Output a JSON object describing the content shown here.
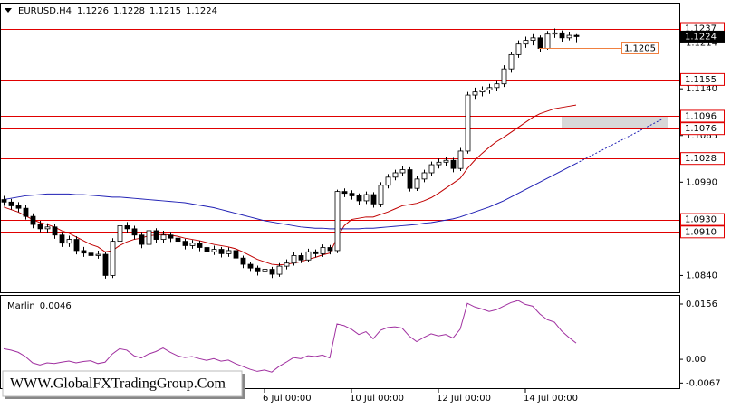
{
  "chart_data": {
    "type": "candlestick",
    "title": "EURUSD,H4",
    "header_values": [
      1.1226,
      1.1228,
      1.1215,
      1.1224
    ],
    "categories": [
      null,
      null,
      null,
      null,
      null,
      null,
      null,
      null,
      null,
      null,
      null,
      null,
      null,
      null,
      null,
      null,
      null,
      null,
      null,
      null,
      null,
      null,
      null,
      null,
      null,
      null,
      null,
      null,
      null,
      null,
      null,
      null,
      null,
      null,
      null,
      null,
      "6 Jul 00:00",
      null,
      null,
      null,
      null,
      null,
      null,
      null,
      null,
      null,
      null,
      null,
      "10 Jul 00:00",
      null,
      null,
      null,
      null,
      null,
      null,
      null,
      null,
      null,
      null,
      null,
      "12 Jul 00:00",
      null,
      null,
      null,
      null,
      null,
      null,
      null,
      null,
      null,
      null,
      null,
      "14 Jul 00:00",
      null,
      null,
      null,
      null,
      null,
      null,
      null
    ],
    "open": [
      1.0962,
      1.0958,
      1.0952,
      1.0948,
      1.0935,
      1.0922,
      1.0915,
      1.0918,
      1.0905,
      1.0892,
      1.0898,
      1.088,
      1.0876,
      1.0872,
      1.0874,
      1.084,
      1.0895,
      1.092,
      1.0915,
      1.0905,
      1.089,
      1.0912,
      1.0898,
      1.0905,
      1.09,
      1.0895,
      1.0888,
      1.0892,
      1.0885,
      1.0878,
      1.0882,
      1.0875,
      1.088,
      1.0868,
      1.0858,
      1.0852,
      1.0846,
      1.085,
      1.0842,
      1.0855,
      1.086,
      1.0872,
      1.0865,
      1.0878,
      1.0875,
      1.0885,
      1.088,
      1.0975,
      1.0972,
      1.0968,
      1.096,
      1.097,
      1.0955,
      1.0985,
      1.0998,
      1.1005,
      1.101,
      1.098,
      1.0995,
      1.1005,
      1.1018,
      1.1022,
      1.1025,
      1.1012,
      1.104,
      1.113,
      1.1135,
      1.1138,
      1.1142,
      1.1148,
      1.1172,
      1.1195,
      1.1212,
      1.1218,
      1.1222,
      1.1205,
      1.1228,
      1.123,
      1.1222,
      1.1226
    ],
    "high": [
      1.0968,
      1.0963,
      1.0958,
      1.0953,
      1.094,
      1.0928,
      1.0924,
      1.0923,
      1.091,
      1.0904,
      1.0903,
      1.0886,
      1.0882,
      1.088,
      1.0878,
      1.09,
      1.0928,
      1.0926,
      1.092,
      1.091,
      1.0925,
      1.0916,
      1.0912,
      1.091,
      1.0905,
      1.0899,
      1.0897,
      1.0896,
      1.089,
      1.0888,
      1.0886,
      1.0885,
      1.0884,
      1.0872,
      1.0862,
      1.0856,
      1.0856,
      1.0854,
      1.086,
      1.0866,
      1.0878,
      1.0876,
      1.0883,
      1.0882,
      1.089,
      1.0889,
      1.0978,
      1.098,
      1.0977,
      1.0972,
      1.0975,
      1.0974,
      1.099,
      1.1003,
      1.101,
      1.1016,
      1.1014,
      1.1,
      1.101,
      1.1023,
      1.1028,
      1.103,
      1.1029,
      1.1045,
      1.1135,
      1.1142,
      1.1144,
      1.1148,
      1.1154,
      1.1178,
      1.12,
      1.1218,
      1.1224,
      1.1228,
      1.1226,
      1.1233,
      1.1237,
      1.1234,
      1.1232,
      1.1228
    ],
    "low": [
      1.0952,
      1.0946,
      1.0942,
      1.093,
      1.0916,
      1.091,
      1.0909,
      1.0899,
      1.0886,
      1.0886,
      1.0874,
      1.087,
      1.0866,
      1.0867,
      1.0835,
      1.0836,
      1.089,
      1.0908,
      1.0898,
      1.0884,
      1.0886,
      1.0892,
      1.0893,
      1.0894,
      1.0889,
      1.0882,
      1.0883,
      1.0879,
      1.0872,
      1.0873,
      1.0869,
      1.087,
      1.0862,
      1.0852,
      1.0846,
      1.084,
      1.084,
      1.0836,
      1.0838,
      1.085,
      1.0856,
      1.086,
      1.0861,
      1.0869,
      1.087,
      1.0874,
      1.0876,
      1.0966,
      1.0962,
      1.0954,
      1.0955,
      1.0949,
      1.095,
      1.098,
      1.0993,
      1.1,
      1.0975,
      1.0976,
      1.099,
      1.1,
      1.1012,
      1.1016,
      1.1006,
      1.1008,
      1.1036,
      1.1124,
      1.1128,
      1.1132,
      1.1136,
      1.1143,
      1.1166,
      1.119,
      1.1206,
      1.121,
      1.12,
      1.1203,
      1.1222,
      1.1216,
      1.1218,
      1.1215
    ],
    "close": [
      1.0958,
      1.0952,
      1.0948,
      1.0935,
      1.0922,
      1.0915,
      1.0918,
      1.0905,
      1.0892,
      1.0898,
      1.088,
      1.0876,
      1.0872,
      1.0874,
      1.084,
      1.0895,
      1.092,
      1.0915,
      1.0905,
      1.089,
      1.0912,
      1.0898,
      1.0905,
      1.09,
      1.0895,
      1.0888,
      1.0892,
      1.0885,
      1.0878,
      1.0882,
      1.0875,
      1.088,
      1.0868,
      1.0858,
      1.0852,
      1.0846,
      1.085,
      1.0842,
      1.0855,
      1.086,
      1.0872,
      1.0865,
      1.0878,
      1.0875,
      1.0885,
      1.088,
      1.0975,
      1.0972,
      1.0968,
      1.096,
      1.097,
      1.0955,
      1.0985,
      1.0998,
      1.1005,
      1.101,
      1.098,
      1.0995,
      1.1005,
      1.1018,
      1.1022,
      1.1025,
      1.1012,
      1.104,
      1.113,
      1.1135,
      1.1138,
      1.1142,
      1.1148,
      1.1172,
      1.1195,
      1.1212,
      1.1218,
      1.1222,
      1.1205,
      1.1228,
      1.123,
      1.1222,
      1.1226,
      1.1224
    ],
    "lines": [
      {
        "color": "#c00000",
        "values": [
          1.095,
          1.0946,
          1.0942,
          1.0936,
          1.093,
          1.0925,
          1.0922,
          1.0918,
          1.0912,
          1.0908,
          1.0902,
          1.0896,
          1.089,
          1.0886,
          1.0878,
          1.088,
          1.0888,
          1.0894,
          1.0898,
          1.09,
          1.0904,
          1.0905,
          1.0906,
          1.0905,
          1.0903,
          1.09,
          1.0898,
          1.0896,
          1.0893,
          1.089,
          1.0888,
          1.0886,
          1.0883,
          1.0878,
          1.0872,
          1.0866,
          1.0862,
          1.0858,
          1.0857,
          1.0858,
          1.086,
          1.0862,
          1.0866,
          1.0869,
          1.0873,
          1.0876,
          1.09,
          1.092,
          1.093,
          1.0932,
          1.0934,
          1.0934,
          1.0938,
          1.0942,
          1.0947,
          1.0952,
          1.0954,
          1.0956,
          1.096,
          1.0965,
          1.0972,
          1.098,
          1.0988,
          1.0996,
          1.1012,
          1.1025,
          1.1036,
          1.1046,
          1.1055,
          1.1062,
          1.107,
          1.1078,
          1.1086,
          1.1094,
          1.11,
          1.1104,
          1.1108,
          1.111,
          1.1112,
          1.1114
        ]
      },
      {
        "color": "#1f1fb4",
        "projection": true,
        "values": [
          1.0962,
          1.0964,
          1.0966,
          1.0968,
          1.0969,
          1.097,
          1.0971,
          1.0971,
          1.0971,
          1.0971,
          1.097,
          1.097,
          1.0969,
          1.0968,
          1.0967,
          1.0966,
          1.0966,
          1.0965,
          1.0964,
          1.0963,
          1.0962,
          1.0961,
          1.096,
          1.0959,
          1.0958,
          1.0957,
          1.0955,
          1.0953,
          1.0951,
          1.0949,
          1.0946,
          1.0943,
          1.094,
          1.0937,
          1.0934,
          1.0931,
          1.0928,
          1.0926,
          1.0924,
          1.0922,
          1.092,
          1.0918,
          1.0917,
          1.0916,
          1.0916,
          1.0915,
          1.0915,
          1.0915,
          1.0915,
          1.0915,
          1.0916,
          1.0916,
          1.0917,
          1.0918,
          1.0919,
          1.092,
          1.0921,
          1.0922,
          1.0924,
          1.0925,
          1.0927,
          1.0929,
          1.0931,
          1.0934,
          1.0938,
          1.0942,
          1.0946,
          1.095,
          1.0955,
          1.096,
          1.0966,
          1.0972,
          1.0978,
          1.0984,
          1.099,
          1.0996,
          1.1002,
          1.1008,
          1.1014,
          1.102
        ]
      }
    ],
    "ylim": [
      1.0813,
      1.1277
    ],
    "yticks": [
      1.1214,
      {
        "value": 1.114,
        "label": "1.1140"
      },
      1.1065,
      {
        "value": 1.099,
        "label": "1.0990"
      },
      {
        "value": 1.084,
        "label": "1.0840"
      }
    ],
    "levels": [
      1.1237,
      1.1155,
      1.1096,
      1.1076,
      1.1028,
      {
        "value": 1.093,
        "label": "1.0930"
      },
      {
        "value": 1.091,
        "label": "1.0910"
      }
    ],
    "level_color": "#e00000",
    "zone": [
      1.1096,
      1.1076
    ],
    "marker": 1.1205,
    "marker_color": "#f08040",
    "current_price": 1.1224,
    "indicator": {
      "name": "Marlin",
      "value": 0.0046,
      "color": "#a030a0",
      "values": [
        0.003,
        0.0026,
        0.002,
        0.0008,
        -0.001,
        -0.0016,
        -0.001,
        -0.0012,
        -0.0008,
        -0.0005,
        -0.001,
        -0.0006,
        -0.0004,
        -0.0012,
        -0.0008,
        0.0015,
        0.003,
        0.0026,
        0.001,
        0.0004,
        0.0015,
        0.0022,
        0.0032,
        0.002,
        0.001,
        0.0005,
        0.0008,
        0.0002,
        -0.0003,
        0.0002,
        -0.0005,
        -0.0002,
        -0.0012,
        -0.002,
        -0.0028,
        -0.0034,
        -0.003,
        -0.0036,
        -0.002,
        -0.0008,
        0.0005,
        0.0002,
        0.001,
        0.0008,
        0.0012,
        0.0004,
        0.01,
        0.0095,
        0.0085,
        0.007,
        0.0078,
        0.0058,
        0.0082,
        0.009,
        0.0092,
        0.0088,
        0.0065,
        0.005,
        0.0062,
        0.0072,
        0.0066,
        0.007,
        0.006,
        0.0085,
        0.0158,
        0.0148,
        0.0142,
        0.0135,
        0.014,
        0.015,
        0.016,
        0.0166,
        0.0155,
        0.015,
        0.0128,
        0.0112,
        0.0105,
        0.008,
        0.0062,
        0.0046
      ],
      "ylim": [
        -0.0084,
        0.0179
      ],
      "yticks": [
        0.0156,
        {
          "value": 0,
          "label": "0.00"
        },
        -0.0067
      ]
    },
    "watermark": "WWW.GlobalFXTradingGroup.Com"
  }
}
